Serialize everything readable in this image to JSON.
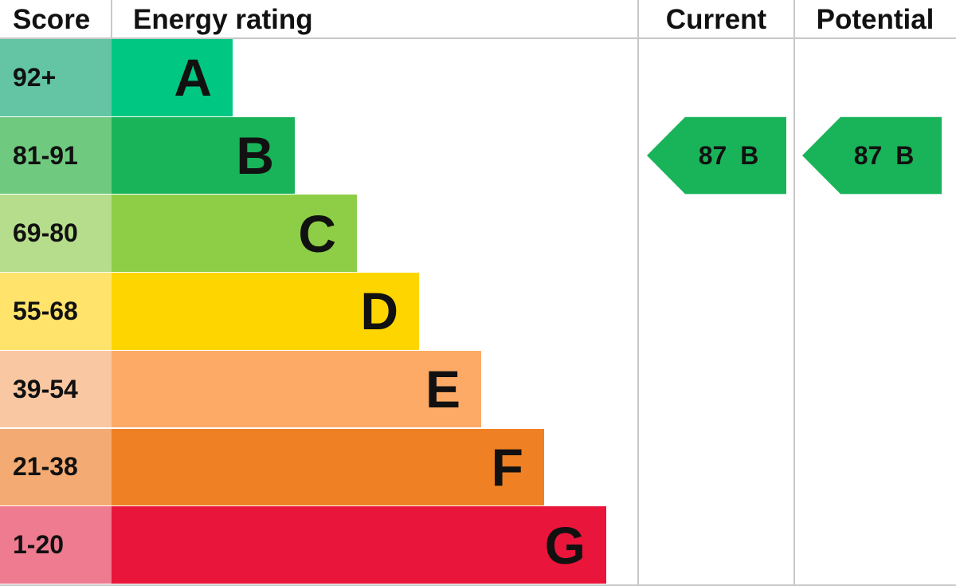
{
  "chart_data": {
    "type": "bar",
    "headers": {
      "score": "Score",
      "rating": "Energy rating",
      "current": "Current",
      "potential": "Potential"
    },
    "bands": [
      {
        "letter": "A",
        "range": "92+",
        "color": "#00c781",
        "score_color": "#63c5a3"
      },
      {
        "letter": "B",
        "range": "81-91",
        "color": "#19b459",
        "score_color": "#6fc97f"
      },
      {
        "letter": "C",
        "range": "69-80",
        "color": "#8dce46",
        "score_color": "#b5dd8b"
      },
      {
        "letter": "D",
        "range": "55-68",
        "color": "#ffd500",
        "score_color": "#ffe36a"
      },
      {
        "letter": "E",
        "range": "39-54",
        "color": "#fcaa65",
        "score_color": "#f9c8a2"
      },
      {
        "letter": "F",
        "range": "21-38",
        "color": "#ef8023",
        "score_color": "#f3ab73"
      },
      {
        "letter": "G",
        "range": "1-20",
        "color": "#e9153b",
        "score_color": "#ee7b90"
      }
    ],
    "current": {
      "score": 87,
      "band": "B",
      "label": "87 B"
    },
    "potential": {
      "score": 87,
      "band": "B",
      "label": "87 B"
    }
  }
}
